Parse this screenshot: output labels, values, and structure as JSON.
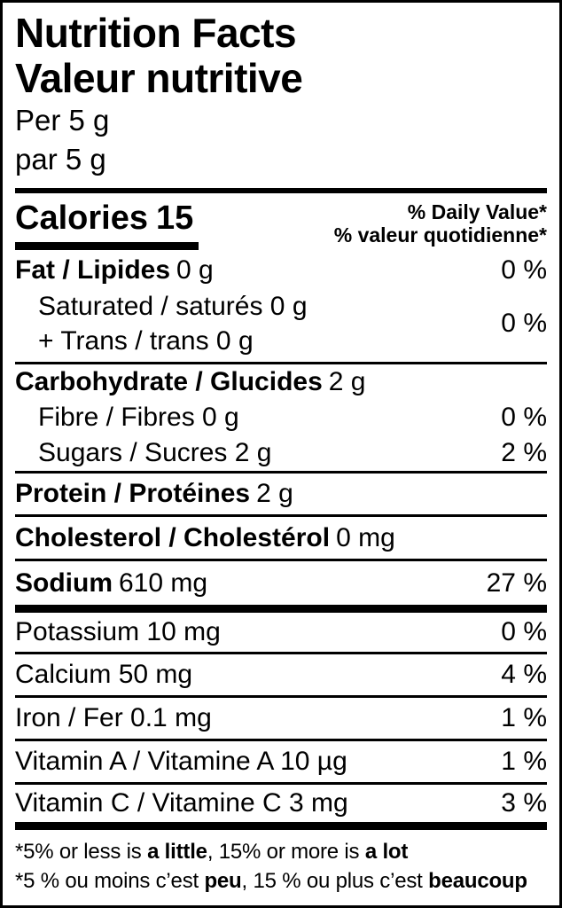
{
  "header": {
    "title_en": "Nutrition Facts",
    "title_fr": "Valeur nutritive",
    "serving_en": "Per 5 g",
    "serving_fr": "par 5 g"
  },
  "calories": {
    "label": "Calories",
    "value": "15"
  },
  "daily_value_header": {
    "en": "% Daily Value*",
    "fr": "% valeur quotidienne*"
  },
  "nutrients": {
    "fat": {
      "label": "Fat / Lipides",
      "amount": "0 g",
      "dv": "0 %"
    },
    "saturated": {
      "line1": "Saturated / saturés 0 g",
      "line2": "+ Trans / trans 0 g",
      "dv": "0 %"
    },
    "carbohydrate": {
      "label": "Carbohydrate / Glucides",
      "amount": "2 g"
    },
    "fibre": {
      "label": "Fibre / Fibres 0 g",
      "dv": "0 %"
    },
    "sugars": {
      "label": "Sugars / Sucres 2 g",
      "dv": "2 %"
    },
    "protein": {
      "label": "Protein / Protéines",
      "amount": "2 g"
    },
    "cholesterol": {
      "label": "Cholesterol / Cholestérol",
      "amount": "0 mg"
    },
    "sodium": {
      "label": "Sodium",
      "amount": "610 mg",
      "dv": "27 %"
    },
    "potassium": {
      "label": "Potassium 10 mg",
      "dv": "0 %"
    },
    "calcium": {
      "label": "Calcium 50 mg",
      "dv": "4 %"
    },
    "iron": {
      "label": "Iron / Fer 0.1 mg",
      "dv": "1 %"
    },
    "vitamin_a": {
      "label": "Vitamin A / Vitamine A 10 µg",
      "dv": "1 %"
    },
    "vitamin_c": {
      "label": "Vitamin C / Vitamine C 3 mg",
      "dv": "3 %"
    }
  },
  "footnote": {
    "en": {
      "prefix": "*5% or less is ",
      "low": "a little",
      "mid": ", 15% or more is ",
      "high": "a lot"
    },
    "fr": {
      "prefix": "*5 % ou moins c’est ",
      "low": "peu",
      "mid": ", 15 % ou plus c’est ",
      "high": "beaucoup"
    }
  },
  "colors": {
    "text": "#000000",
    "background": "#ffffff",
    "rule": "#000000"
  }
}
